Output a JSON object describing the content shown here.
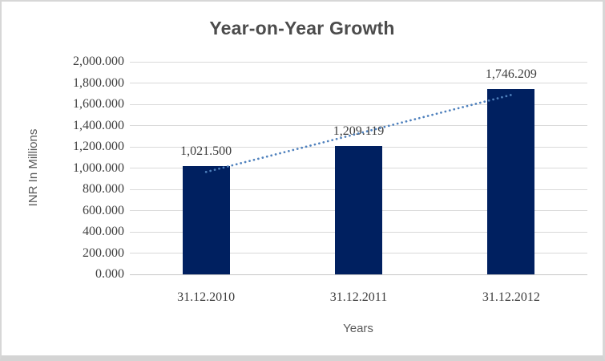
{
  "chart_data": {
    "type": "bar",
    "title": "Year-on-Year Growth",
    "xlabel": "Years",
    "ylabel": "INR In Millions",
    "categories": [
      "31.12.2010",
      "31.12.2011",
      "31.12.2012"
    ],
    "values": [
      1021.5,
      1209.119,
      1746.209
    ],
    "value_labels": [
      "1,021.500",
      "1,209.119",
      "1,746.209"
    ],
    "ylim": [
      0,
      2000
    ],
    "ytick_step": 200,
    "ytick_labels": [
      "0.000",
      "200.000",
      "400.000",
      "600.000",
      "800.000",
      "1,000.000",
      "1,200.000",
      "1,400.000",
      "1,600.000",
      "1,800.000",
      "2,000.000"
    ],
    "grid": true,
    "legend": false,
    "trendline": {
      "type": "linear",
      "style": "dotted"
    },
    "colors": {
      "bar": "#002060",
      "trendline": "#4f81bd",
      "gridline": "#d9d9d9",
      "axis_line": "#c6c6c6",
      "tick_text": "#3d3d3d",
      "title_text": "#4c4c4c",
      "axis_title_text": "#595959"
    }
  }
}
